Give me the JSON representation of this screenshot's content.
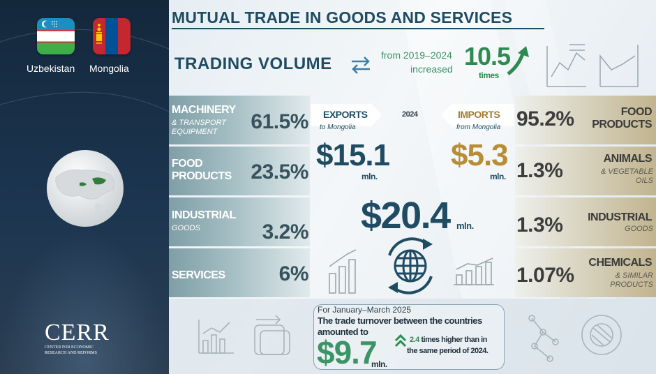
{
  "countries": {
    "left": "Uzbekistan",
    "right": "Mongolia"
  },
  "title": "MUTUAL TRADE IN GOODS AND SERVICES",
  "trading_volume": {
    "label": "TRADING VOLUME",
    "period_line1": "from 2019–2024",
    "period_line2": "increased",
    "times_value": "10.5",
    "times_label": "times"
  },
  "exports": {
    "label": "EXPORTS",
    "sub": "to Mongolia",
    "value": "$15.1",
    "unit": "mln.",
    "items": [
      {
        "name": "MACHINERY",
        "sub": "& TRANSPORT EQUIPMENT",
        "pct": "61.5%"
      },
      {
        "name": "FOOD PRODUCTS",
        "sub": "",
        "pct": "23.5%"
      },
      {
        "name": "INDUSTRIAL",
        "sub": "GOODS",
        "pct": "3.2%"
      },
      {
        "name": "SERVICES",
        "sub": "",
        "pct": "6%"
      }
    ]
  },
  "year": "2024",
  "imports": {
    "label": "IMPORTS",
    "sub": "from Mongolia",
    "value": "$5.3",
    "unit": "mln.",
    "items": [
      {
        "name": "FOOD PRODUCTS",
        "sub": "",
        "pct": "95.2%"
      },
      {
        "name": "ANIMALS",
        "sub": "& VEGETABLE OILS",
        "pct": "1.3%"
      },
      {
        "name": "INDUSTRIAL",
        "sub": "GOODS",
        "pct": "1.3%"
      },
      {
        "name": "CHEMICALS",
        "sub": "& SIMILAR PRODUCTS",
        "pct": "1.07%"
      }
    ]
  },
  "total": {
    "value": "$20.4",
    "unit": "mln."
  },
  "q1": {
    "period": "For January–March 2025",
    "text1": "The trade turnover between the countries",
    "text2": "amounted to",
    "value": "$9.7",
    "unit": "mln.",
    "cmp_value": "2.4",
    "cmp_text1": " times higher than in",
    "cmp_text2": "the same period of 2024."
  },
  "logo": {
    "name": "CERR",
    "sub1": "CENTER FOR ECONOMIC",
    "sub2": "RESEARCH AND REFORMS"
  },
  "colors": {
    "navy": "#1f4c62",
    "green": "#3a9466",
    "gold": "#b78d36"
  }
}
